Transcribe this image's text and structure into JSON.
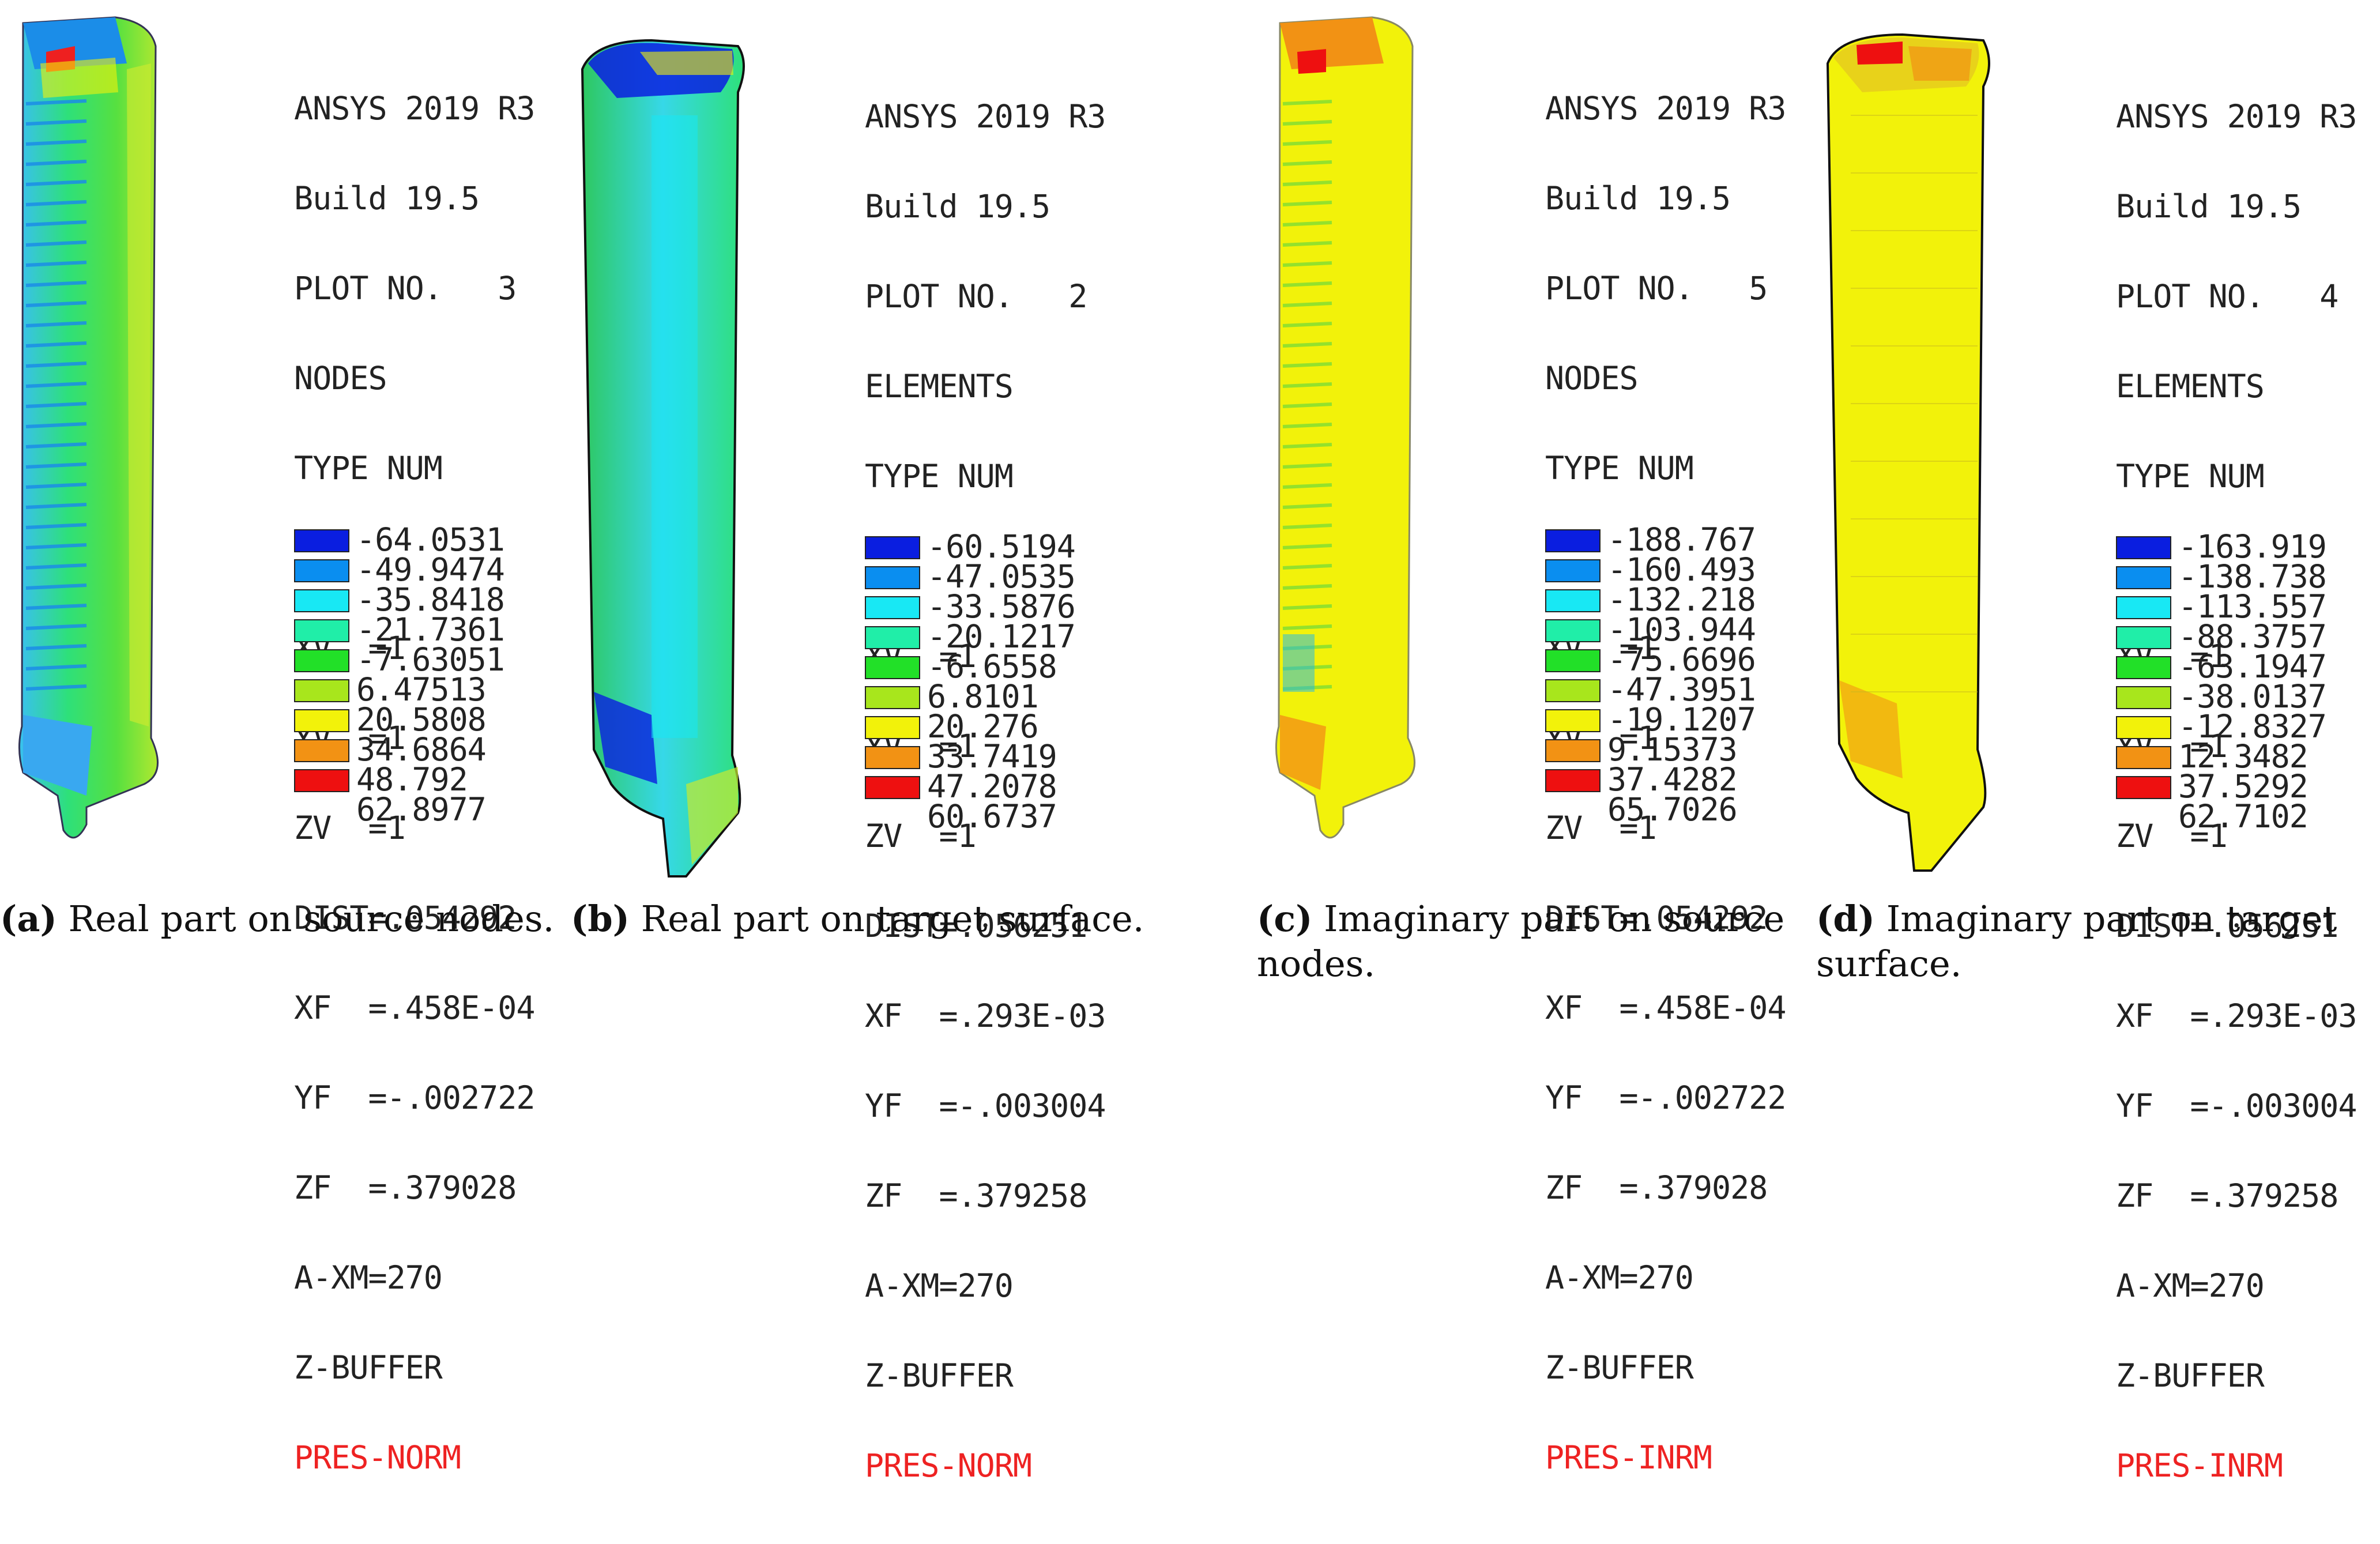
{
  "legend_colors": [
    "#0a1ee0",
    "#0a8ef0",
    "#18e8f4",
    "#20eea8",
    "#22e028",
    "#a8e61c",
    "#f2f20a",
    "#f29214",
    "#ee1010"
  ],
  "panels": [
    {
      "info": {
        "software": "ANSYS 2019 R3",
        "build": "Build 19.5",
        "plot_no": "PLOT NO.   3",
        "entity": "NODES",
        "type": "TYPE NUM",
        "xv": "XV  =1",
        "yv": "YV  =1",
        "zv": "ZV  =1",
        "dist": "DIST=.054292",
        "xf": "XF  =.458E-04",
        "yf": "YF  =-.002722",
        "zf": "ZF  =.379028",
        "axm": "A-XM=270",
        "zbuffer": "Z-BUFFER",
        "quantity": "PRES-NORM"
      },
      "legend_values": [
        "-64.0531",
        "-49.9474",
        "-35.8418",
        "-21.7361",
        "-7.63051",
        "6.47513",
        "20.5808",
        "34.6864",
        "48.792",
        "62.8977"
      ],
      "caption_label": "(a)",
      "caption_text": " Real part on source nodes."
    },
    {
      "info": {
        "software": "ANSYS 2019 R3",
        "build": "Build 19.5",
        "plot_no": "PLOT NO.   2",
        "entity": "ELEMENTS",
        "type": "TYPE NUM",
        "xv": "XV  =1",
        "yv": "YV  =1",
        "zv": "ZV  =1",
        "dist": "DIST=.056251",
        "xf": "XF  =.293E-03",
        "yf": "YF  =-.003004",
        "zf": "ZF  =.379258",
        "axm": "A-XM=270",
        "zbuffer": "Z-BUFFER",
        "quantity": "PRES-NORM"
      },
      "legend_values": [
        "-60.5194",
        "-47.0535",
        "-33.5876",
        "-20.1217",
        "-6.6558",
        "6.8101",
        "20.276",
        "33.7419",
        "47.2078",
        "60.6737"
      ],
      "caption_label": "(b)",
      "caption_text": " Real part on target surface."
    },
    {
      "info": {
        "software": "ANSYS 2019 R3",
        "build": "Build 19.5",
        "plot_no": "PLOT NO.   5",
        "entity": "NODES",
        "type": "TYPE NUM",
        "xv": "XV  =1",
        "yv": "YV  =1",
        "zv": "ZV  =1",
        "dist": "DIST=.054292",
        "xf": "XF  =.458E-04",
        "yf": "YF  =-.002722",
        "zf": "ZF  =.379028",
        "axm": "A-XM=270",
        "zbuffer": "Z-BUFFER",
        "quantity": "PRES-INRM"
      },
      "legend_values": [
        "-188.767",
        "-160.493",
        "-132.218",
        "-103.944",
        "-75.6696",
        "-47.3951",
        "-19.1207",
        "9.15373",
        "37.4282",
        "65.7026"
      ],
      "caption_label": "(c)",
      "caption_text": " Imaginary part on source nodes."
    },
    {
      "info": {
        "software": "ANSYS 2019 R3",
        "build": "Build 19.5",
        "plot_no": "PLOT NO.   4",
        "entity": "ELEMENTS",
        "type": "TYPE NUM",
        "xv": "XV  =1",
        "yv": "YV  =1",
        "zv": "ZV  =1",
        "dist": "DIST=.056251",
        "xf": "XF  =.293E-03",
        "yf": "YF  =-.003004",
        "zf": "ZF  =.379258",
        "axm": "A-XM=270",
        "zbuffer": "Z-BUFFER",
        "quantity": "PRES-INRM"
      },
      "legend_values": [
        "-163.919",
        "-138.738",
        "-113.557",
        "-88.3757",
        "-63.1947",
        "-38.0137",
        "-12.8327",
        "12.3482",
        "37.5292",
        "62.7102"
      ],
      "caption_label": "(d)",
      "caption_text": " Imaginary part on target surface."
    }
  ]
}
